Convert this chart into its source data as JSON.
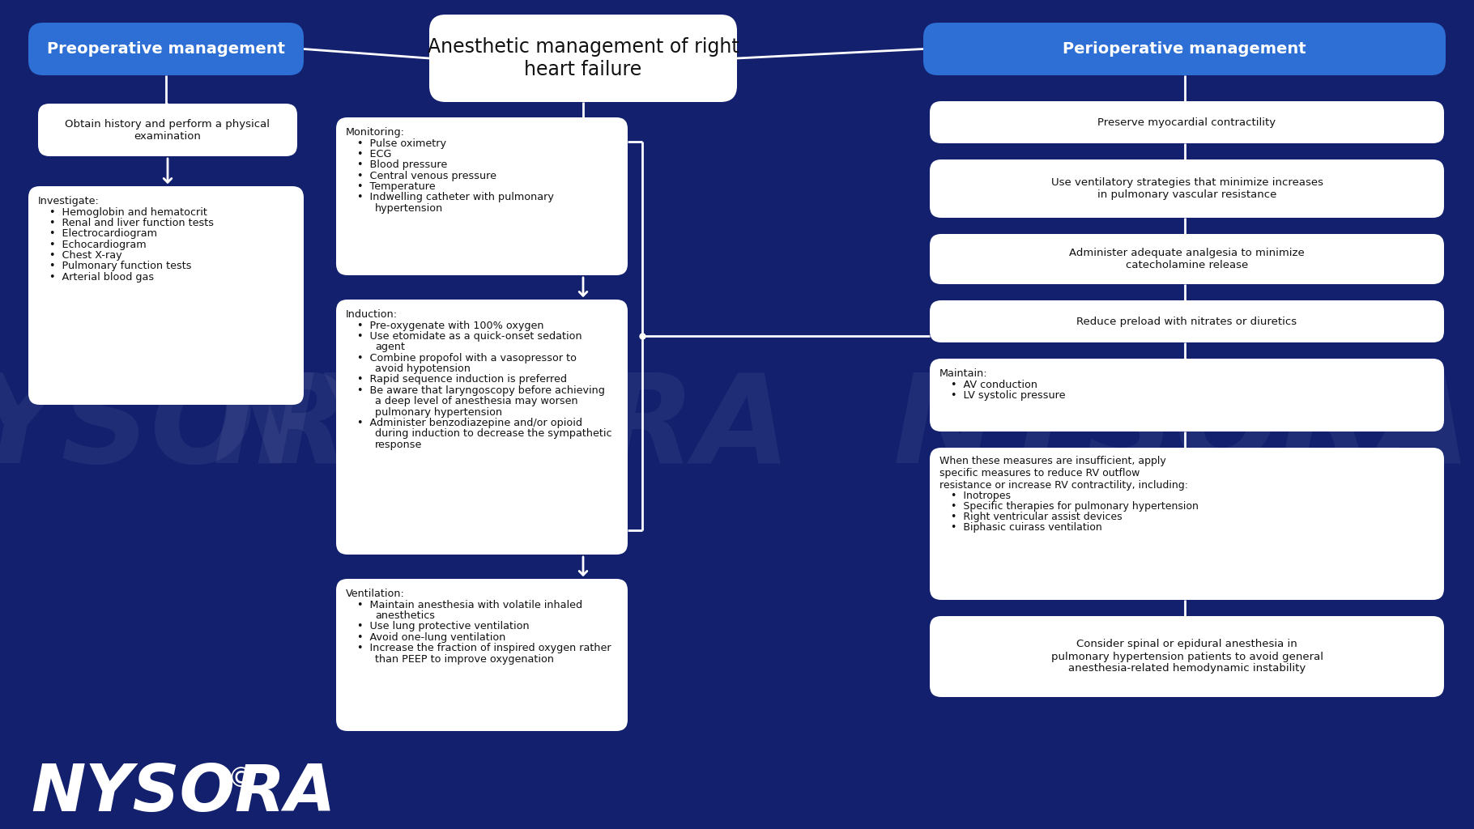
{
  "bg_color": "#12206e",
  "box_white": "#ffffff",
  "box_blue": "#2d6fd4",
  "text_dark": "#111111",
  "text_white": "#ffffff",
  "arrow_color": "#ffffff",
  "title": "Anesthetic management of right\nheart failure",
  "left_header": "Preoperative management",
  "right_header": "Perioperative management",
  "left_box1": "Obtain history and perform a physical\nexamination",
  "left_box2_title": "Investigate:",
  "left_box2_bullets": [
    "Hemoglobin and hematocrit",
    "Renal and liver function tests",
    "Electrocardiogram",
    "Echocardiogram",
    "Chest X-ray",
    "Pulmonary function tests",
    "Arterial blood gas"
  ],
  "center_box1_title": "Monitoring:",
  "center_box1_bullets": [
    "Pulse oximetry",
    "ECG",
    "Blood pressure",
    "Central venous pressure",
    "Temperature",
    "Indwelling catheter with pulmonary\nhypertension"
  ],
  "center_box2_title": "Induction:",
  "center_box2_bullets": [
    "Pre-oxygenate with 100% oxygen",
    "Use etomidate as a quick-onset sedation\nagent",
    "Combine propofol with a vasopressor to\navoid hypotension",
    "Rapid sequence induction is preferred",
    "Be aware that laryngoscopy before achieving\na deep level of anesthesia may worsen\npulmonary hypertension",
    "Administer benzodiazepine and/or opioid\nduring induction to decrease the sympathetic\nresponse"
  ],
  "center_box3_title": "Ventilation:",
  "center_box3_bullets": [
    "Maintain anesthesia with volatile inhaled\nanesthetics",
    "Use lung protective ventilation",
    "Avoid one-lung ventilation",
    "Increase the fraction of inspired oxygen rather\nthan PEEP to improve oxygenation"
  ],
  "right_box1": "Preserve myocardial contractility",
  "right_box2": "Use ventilatory strategies that minimize increases\nin pulmonary vascular resistance",
  "right_box3": "Administer adequate analgesia to minimize\ncatecholamine release",
  "right_box4": "Reduce preload with nitrates or diuretics",
  "right_box5_title": "Maintain:",
  "right_box5_bullets": [
    "AV conduction",
    "LV systolic pressure"
  ],
  "right_box6_title": "When these measures are insufficient, apply\nspecific measures to reduce RV outflow\nresistance or increase RV contractility, including:",
  "right_box6_bullets": [
    "Inotropes",
    "Specific therapies for pulmonary hypertension",
    "Right ventricular assist devices",
    "Biphasic cuirass ventilation"
  ],
  "right_box7": "Consider spinal or epidural anesthesia in\npulmonary hypertension patients to avoid general\nanesthesia-related hemodynamic instability",
  "nysora_text": "NYSORA",
  "nysora_copyright": "©"
}
